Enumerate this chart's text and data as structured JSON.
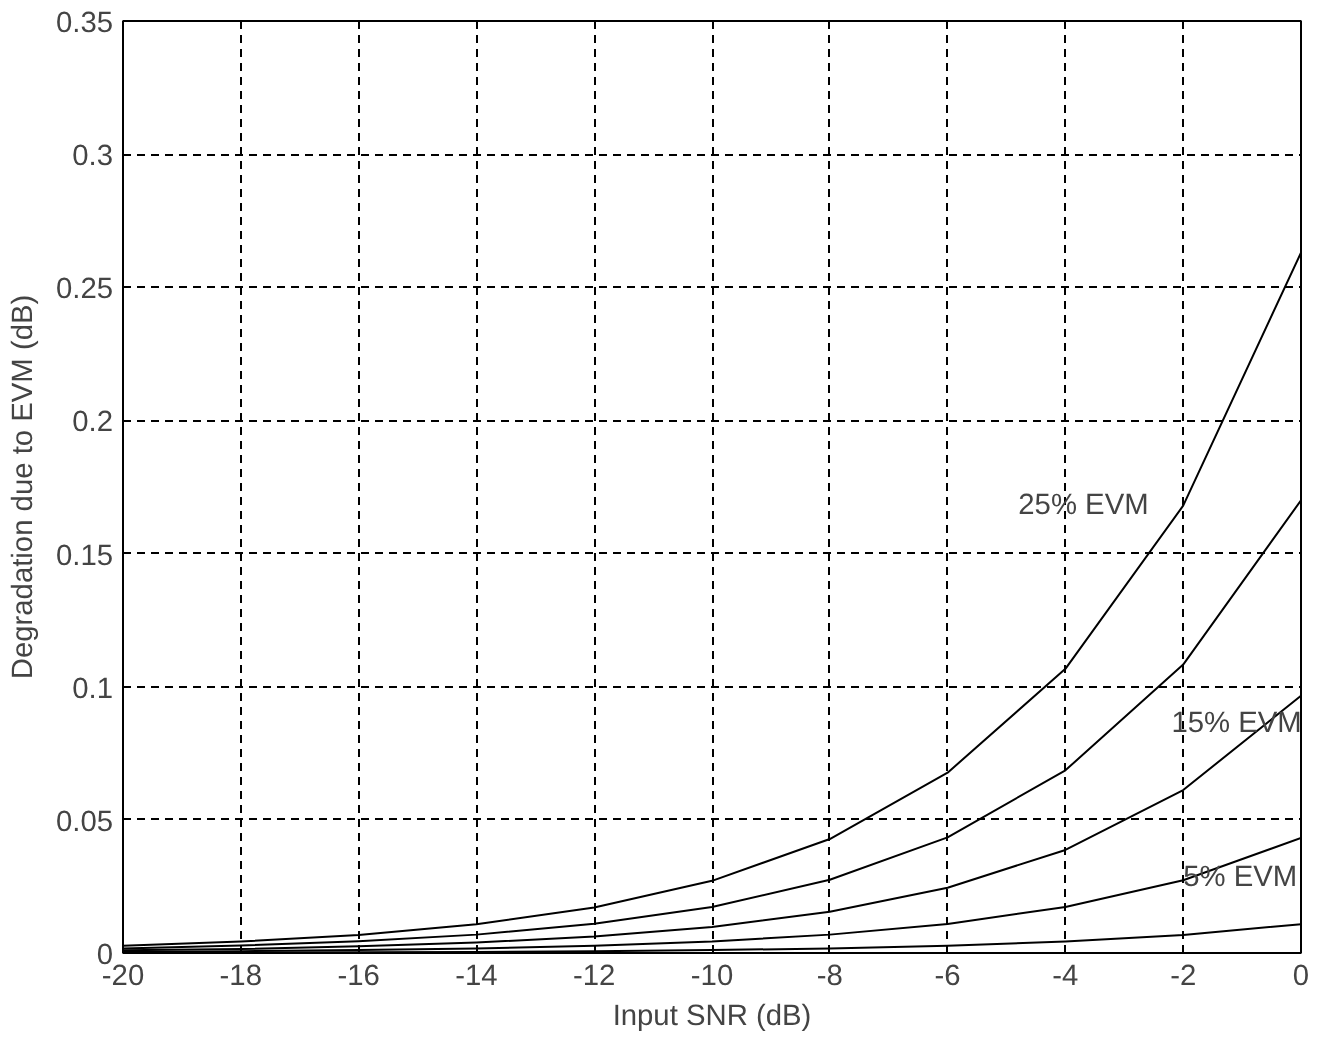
{
  "chart_data": {
    "type": "line",
    "xlabel": "Input SNR (dB)",
    "ylabel": "Degradation due to EVM (dB)",
    "x": [
      -20,
      -18,
      -16,
      -14,
      -12,
      -10,
      -8,
      -6,
      -4,
      -2,
      0
    ],
    "series": [
      {
        "color": "#000000",
        "values": [
          0.0027,
          0.0043,
          0.0068,
          0.0108,
          0.0171,
          0.0271,
          0.0428,
          0.0677,
          0.1067,
          0.168,
          0.263
        ]
      },
      {
        "color": "#000000",
        "values": [
          0.0017,
          0.0028,
          0.0044,
          0.0069,
          0.011,
          0.0173,
          0.0275,
          0.0434,
          0.0686,
          0.1083,
          0.17
        ]
      },
      {
        "color": "#000000",
        "values": [
          0.001,
          0.0015,
          0.0025,
          0.0039,
          0.0062,
          0.0098,
          0.0155,
          0.0245,
          0.0387,
          0.0612,
          0.0966
        ]
      },
      {
        "color": "#000000",
        "values": [
          0.0004,
          0.0007,
          0.0011,
          0.0017,
          0.0027,
          0.0043,
          0.0069,
          0.0109,
          0.0173,
          0.0273,
          0.0432
        ]
      },
      {
        "color": "#000000",
        "values": [
          0.0001,
          0.0002,
          0.0003,
          0.0004,
          0.0007,
          0.0011,
          0.0017,
          0.0027,
          0.0043,
          0.0068,
          0.0108
        ]
      }
    ],
    "annotations": [
      "25% EVM",
      "15% EVM",
      "5% EVM"
    ],
    "xlim": [
      -20,
      0
    ],
    "xticks": [
      -20,
      -18,
      -16,
      -14,
      -12,
      -10,
      -8,
      -6,
      -4,
      -2,
      0
    ],
    "ylim": [
      0,
      0.35
    ],
    "yticks": [
      0,
      0.05,
      0.1,
      0.15,
      0.2,
      0.25,
      0.3,
      0.35
    ],
    "grid": true,
    "line_style": "solid",
    "marker": "none"
  }
}
